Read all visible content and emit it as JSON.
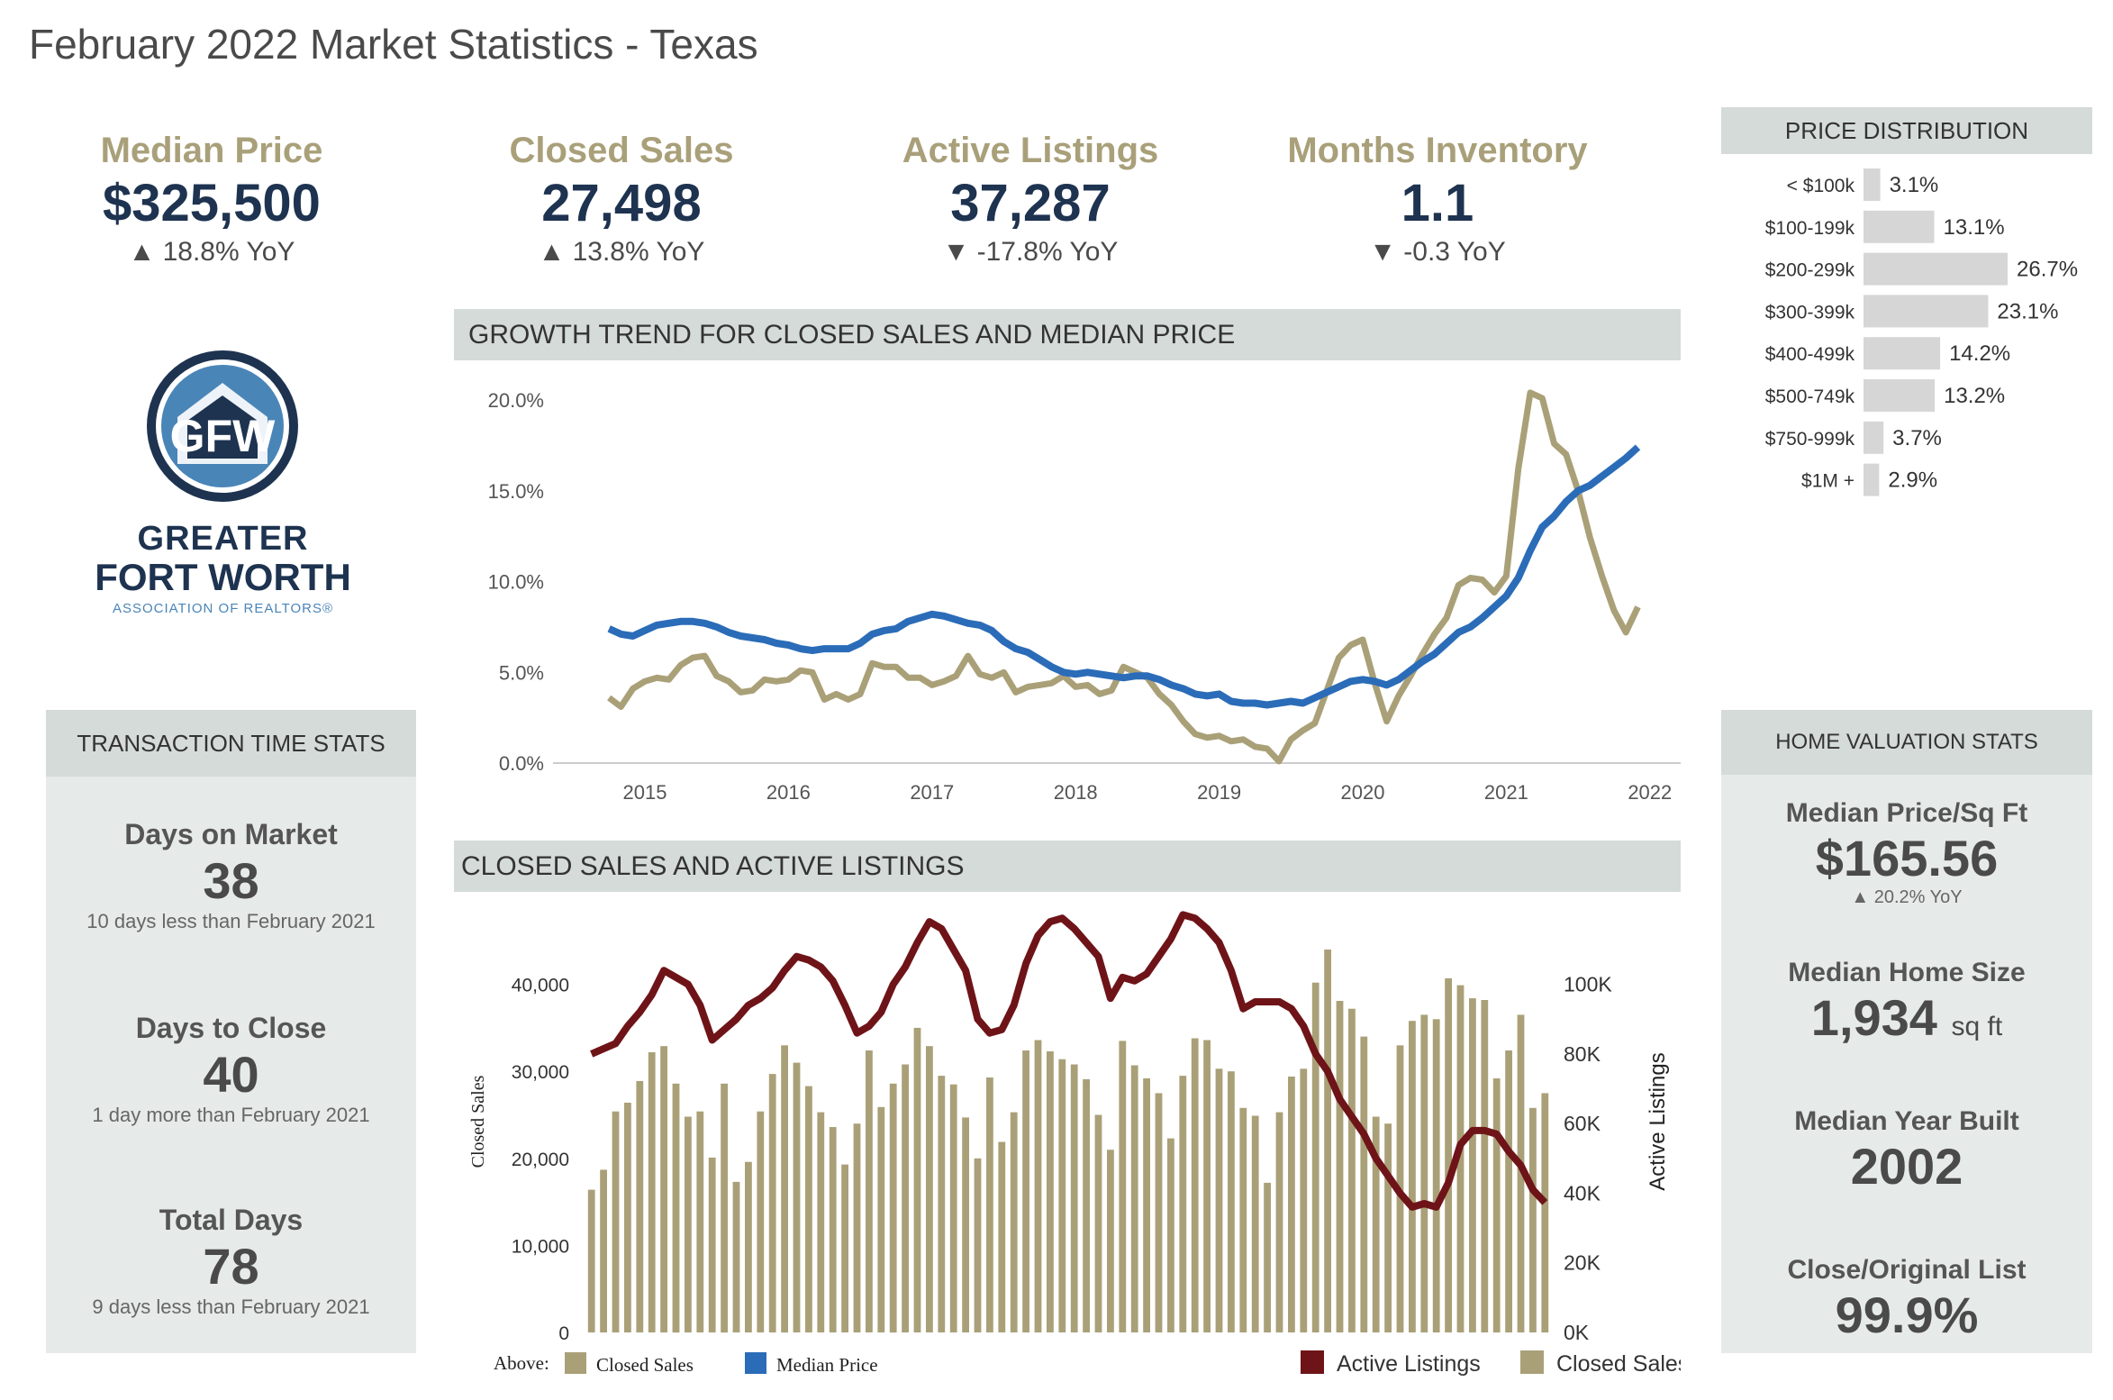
{
  "title": "February 2022 Market Statistics - Texas",
  "kpis": [
    {
      "label": "Median Price",
      "value": "$325,500",
      "yoy": "▲ 18.8% YoY"
    },
    {
      "label": "Closed Sales",
      "value": "27,498",
      "yoy": "▲ 13.8% YoY"
    },
    {
      "label": "Active Listings",
      "value": "37,287",
      "yoy": "▼ -17.8% YoY"
    },
    {
      "label": "Months Inventory",
      "value": "1.1",
      "yoy": "▼ -0.3 YoY"
    }
  ],
  "logo": {
    "line1": "GREATER",
    "line2": "FORT WORTH",
    "line3": "ASSOCIATION OF REALTORS®"
  },
  "colors": {
    "closed_sales": "#aaa078",
    "median_price": "#2b6cb8",
    "active_listings": "#6e1418",
    "navy": "#1e3350",
    "tan_text": "#a9a07a"
  },
  "transaction": {
    "title": "TRANSACTION TIME STATS",
    "items": [
      {
        "label": "Days on Market",
        "value": "38",
        "sub": "10 days less than February 2021"
      },
      {
        "label": "Days to Close",
        "value": "40",
        "sub": "1 day more than February 2021"
      },
      {
        "label": "Total Days",
        "value": "78",
        "sub": "9 days less than February 2021"
      }
    ]
  },
  "valuation": {
    "title": "HOME VALUATION STATS",
    "items": [
      {
        "label": "Median Price/Sq Ft",
        "value": "$165.56",
        "sub": "▲ 20.2% YoY",
        "unit": ""
      },
      {
        "label": "Median Home Size",
        "value": "1,934",
        "sub": "",
        "unit": "sq ft"
      },
      {
        "label": "Median Year Built",
        "value": "2002",
        "sub": "",
        "unit": ""
      },
      {
        "label": "Close/Original List",
        "value": "99.9%",
        "sub": "",
        "unit": ""
      }
    ]
  },
  "chart_data": [
    {
      "type": "bar",
      "title": "PRICE DISTRIBUTION",
      "orientation": "horizontal",
      "categories": [
        "< $100k",
        "$100-199k",
        "$200-299k",
        "$300-399k",
        "$400-499k",
        "$500-749k",
        "$750-999k",
        "$1M +"
      ],
      "values": [
        3.1,
        13.1,
        26.7,
        23.1,
        14.2,
        13.2,
        3.7,
        2.9
      ],
      "labels": [
        "3.1%",
        "13.1%",
        "26.7%",
        "23.1%",
        "14.2%",
        "13.2%",
        "3.7%",
        "2.9%"
      ]
    },
    {
      "type": "line",
      "title": "GROWTH TREND FOR CLOSED SALES AND MEDIAN PRICE",
      "x_start": 2014.75,
      "x_step_months": 1,
      "x_ticks": [
        "2015",
        "2016",
        "2017",
        "2018",
        "2019",
        "2020",
        "2021",
        "2022"
      ],
      "y_ticks": [
        "0.0%",
        "5.0%",
        "10.0%",
        "15.0%",
        "20.0%"
      ],
      "ylim": [
        0,
        20
      ],
      "series": [
        {
          "name": "Closed Sales",
          "values": [
            3.6,
            3.1,
            4.1,
            4.5,
            4.7,
            4.6,
            5.4,
            5.8,
            5.9,
            4.8,
            4.5,
            3.9,
            4.0,
            4.6,
            4.5,
            4.6,
            5.1,
            5.0,
            3.5,
            3.8,
            3.5,
            3.8,
            5.5,
            5.3,
            5.3,
            4.7,
            4.7,
            4.3,
            4.5,
            4.8,
            5.9,
            4.9,
            4.7,
            5.0,
            3.9,
            4.2,
            4.3,
            4.4,
            4.8,
            4.2,
            4.3,
            3.8,
            4.0,
            5.3,
            5.0,
            4.7,
            3.8,
            3.2,
            2.3,
            1.6,
            1.4,
            1.5,
            1.2,
            1.3,
            0.9,
            0.8,
            0.1,
            1.3,
            1.8,
            2.2,
            4.0,
            5.8,
            6.5,
            6.8,
            4.4,
            2.3,
            3.7,
            4.8,
            6.0,
            7.1,
            8.0,
            9.8,
            10.2,
            10.1,
            9.4,
            10.3,
            16.2,
            20.4,
            20.1,
            17.6,
            17.0,
            15.0,
            12.4,
            10.3,
            8.4,
            7.2,
            8.6
          ]
        },
        {
          "name": "Median Price",
          "values": [
            7.4,
            7.1,
            7.0,
            7.3,
            7.6,
            7.7,
            7.8,
            7.8,
            7.7,
            7.5,
            7.2,
            7.0,
            6.9,
            6.8,
            6.6,
            6.5,
            6.3,
            6.2,
            6.3,
            6.3,
            6.3,
            6.6,
            7.1,
            7.3,
            7.4,
            7.8,
            8.0,
            8.2,
            8.1,
            7.9,
            7.7,
            7.6,
            7.3,
            6.7,
            6.3,
            6.1,
            5.7,
            5.3,
            5.0,
            4.9,
            5.0,
            4.9,
            4.8,
            4.7,
            4.8,
            4.8,
            4.6,
            4.3,
            4.1,
            3.8,
            3.7,
            3.8,
            3.4,
            3.3,
            3.3,
            3.2,
            3.3,
            3.4,
            3.3,
            3.6,
            3.9,
            4.2,
            4.5,
            4.6,
            4.5,
            4.3,
            4.6,
            5.1,
            5.6,
            6.0,
            6.6,
            7.2,
            7.5,
            8.0,
            8.6,
            9.2,
            10.2,
            11.7,
            13.0,
            13.6,
            14.4,
            15.0,
            15.3,
            15.8,
            16.3,
            16.8,
            17.4
          ]
        }
      ]
    },
    {
      "type": "bar",
      "title": "CLOSED SALES AND ACTIVE LISTINGS",
      "ylabel": "Closed Sales",
      "y2label": "Active Listings",
      "y_ticks": [
        "0",
        "10,000",
        "20,000",
        "30,000",
        "40,000"
      ],
      "y2_ticks": [
        "0K",
        "20K",
        "40K",
        "60K",
        "80K",
        "100K"
      ],
      "ylim": [
        0,
        44000
      ],
      "y2lim": [
        0,
        110000
      ],
      "legend_above": "Above:",
      "legend_left": [
        "Closed Sales",
        "Median Price"
      ],
      "legend_right": [
        "Active Listings",
        "Closed Sales"
      ],
      "series": [
        {
          "name": "Closed Sales",
          "type": "bar",
          "values": [
            16400,
            18700,
            25400,
            26400,
            28900,
            32200,
            32900,
            28600,
            24800,
            25400,
            20100,
            28600,
            17300,
            19600,
            25400,
            29700,
            33000,
            31000,
            28300,
            25300,
            23600,
            19300,
            24000,
            32400,
            25900,
            28600,
            30800,
            35000,
            32900,
            29500,
            28500,
            24700,
            20000,
            29300,
            21900,
            25300,
            32400,
            33600,
            32300,
            31400,
            30800,
            29100,
            25000,
            21000,
            33500,
            30700,
            29200,
            27500,
            22300,
            29500,
            33800,
            33600,
            30300,
            30000,
            25800,
            24900,
            17200,
            25300,
            29400,
            30300,
            40200,
            44000,
            38100,
            37200,
            34000,
            24800,
            24000,
            33000,
            35800,
            36500,
            36000,
            40700,
            39900,
            38400,
            38200,
            29200,
            32400,
            36500,
            25800,
            27500
          ]
        },
        {
          "name": "Active Listings",
          "type": "line",
          "values": [
            80000,
            81500,
            83000,
            88000,
            92000,
            97000,
            104000,
            102000,
            100000,
            94000,
            84000,
            87000,
            90000,
            94000,
            96000,
            99000,
            104000,
            108000,
            107000,
            105000,
            101000,
            94000,
            86000,
            88000,
            92000,
            100000,
            105000,
            112000,
            118000,
            116000,
            110000,
            104000,
            90000,
            86000,
            87000,
            94000,
            106000,
            114000,
            118000,
            119000,
            116000,
            112000,
            108000,
            96000,
            102000,
            101000,
            103000,
            108000,
            113000,
            120000,
            119000,
            116000,
            112000,
            104000,
            93000,
            95000,
            95000,
            95000,
            93000,
            88000,
            80000,
            75000,
            67000,
            62000,
            57000,
            50000,
            45000,
            40000,
            36000,
            37000,
            36000,
            43000,
            54000,
            58000,
            58000,
            57000,
            52000,
            48000,
            41000,
            37287
          ]
        }
      ]
    }
  ]
}
